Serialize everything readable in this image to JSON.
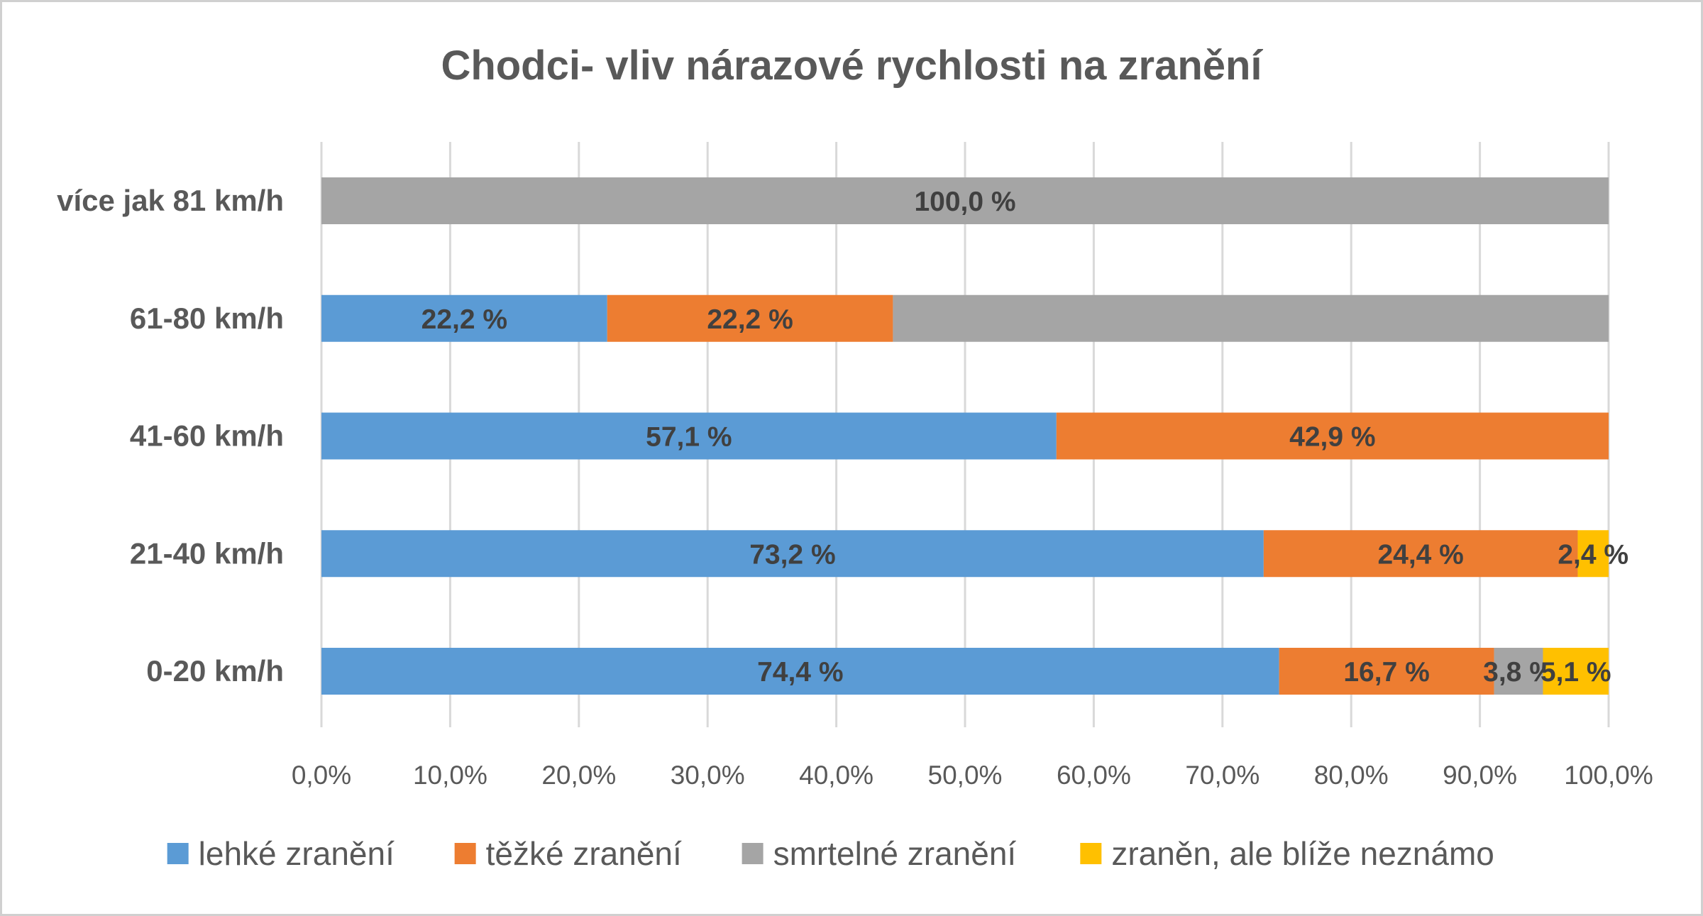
{
  "chart_data": {
    "type": "bar",
    "orientation": "horizontal",
    "stacked": "percent",
    "title": "Chodci- vliv nárazové rychlosti na zranění",
    "categories": [
      "0-20 km/h",
      "21-40 km/h",
      "41-60 km/h",
      "61-80 km/h",
      "více jak 81 km/h"
    ],
    "series": [
      {
        "name": "lehké zranění",
        "color": "#5B9BD5",
        "values": [
          74.4,
          73.2,
          57.1,
          22.2,
          0
        ]
      },
      {
        "name": "těžké zranění",
        "color": "#ED7D31",
        "values": [
          16.7,
          24.4,
          42.9,
          22.2,
          0
        ]
      },
      {
        "name": "smrtelné zranění",
        "color": "#A5A5A5",
        "values": [
          3.8,
          0,
          0,
          55.6,
          100.0
        ]
      },
      {
        "name": "zraněn, ale blíže neznámo",
        "color": "#FFC000",
        "values": [
          5.1,
          2.4,
          0,
          0,
          0
        ]
      }
    ],
    "data_labels": [
      [
        "74,4 %",
        "73,2 %",
        "57,1 %",
        "22,2 %",
        ""
      ],
      [
        "16,7 %",
        "24,4 %",
        "42,9 %",
        "22,2 %",
        ""
      ],
      [
        "3,8 %",
        "",
        "",
        "",
        "100,0 %"
      ],
      [
        "5,1 %",
        "2,4 %",
        "",
        "",
        ""
      ]
    ],
    "x_ticks": [
      "0,0%",
      "10,0%",
      "20,0%",
      "30,0%",
      "40,0%",
      "50,0%",
      "60,0%",
      "70,0%",
      "80,0%",
      "90,0%",
      "100,0%"
    ],
    "xlim": [
      0,
      100
    ],
    "grid": true,
    "legend": "bottom"
  }
}
